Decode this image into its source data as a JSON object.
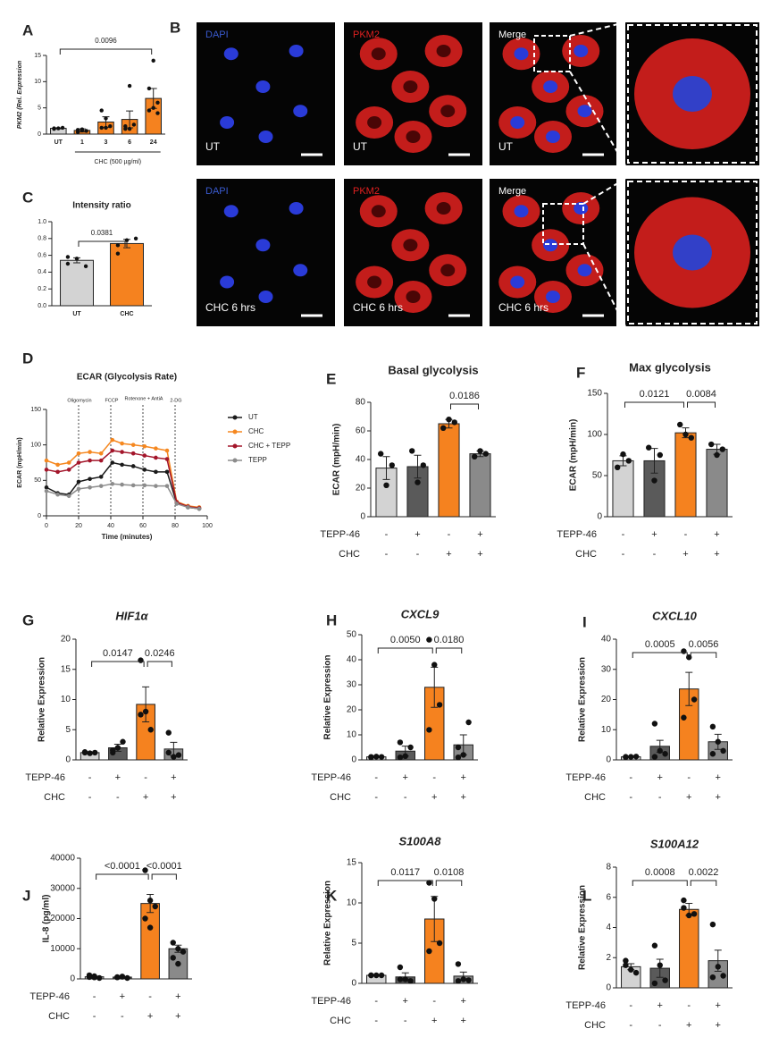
{
  "panel_B": {
    "panel": "B",
    "rows": [
      {
        "labels": [
          "DAPI",
          "PKM2",
          "Merge"
        ],
        "condition": "UT"
      },
      {
        "labels": [
          "DAPI",
          "PKM2",
          "Merge"
        ],
        "condition": "CHC 6 hrs"
      }
    ]
  },
  "chart_data": [
    {
      "type": "bar",
      "panel": "A",
      "ylabel": "PKM2 (Rel. Expression",
      "xlabel": "CHC (500 µg/ml)",
      "categories": [
        "UT",
        "1",
        "3",
        "6",
        "24"
      ],
      "values": [
        1.1,
        0.7,
        2.3,
        2.8,
        6.8
      ],
      "errors": [
        0.1,
        0.3,
        1.0,
        1.6,
        1.9
      ],
      "points": [
        [
          1.0,
          1.1,
          1.2,
          1.1
        ],
        [
          0.4,
          0.9,
          0.6,
          0.8,
          0.7
        ],
        [
          1.2,
          3.0,
          1.5,
          4.5,
          1.2
        ],
        [
          1.5,
          9.2,
          1.8,
          1.0,
          1.0
        ],
        [
          8.7,
          5.0,
          4.0,
          4.5,
          14.0,
          6.0
        ]
      ],
      "colors": [
        "#d3d3d3",
        "#f5821f",
        "#f5821f",
        "#f5821f",
        "#f5821f"
      ],
      "ylim": [
        0,
        15
      ],
      "yticks": [
        0,
        5,
        10,
        15
      ],
      "comparisons": [
        {
          "pair": [
            0,
            4
          ],
          "label": "0.0096"
        }
      ]
    },
    {
      "type": "bar",
      "panel": "C",
      "title": "Intensity ratio",
      "categories": [
        "UT",
        "CHC"
      ],
      "values": [
        0.54,
        0.74
      ],
      "errors": [
        0.03,
        0.05
      ],
      "points": [
        [
          0.5,
          0.56,
          0.47,
          0.58
        ],
        [
          0.62,
          0.78,
          0.8,
          0.72
        ]
      ],
      "colors": [
        "#d3d3d3",
        "#f5821f"
      ],
      "ylim": [
        0,
        1.0
      ],
      "yticks": [
        {
          "value": 0,
          "label": "0.0"
        },
        0.2,
        0.4,
        0.6,
        0.8,
        {
          "value": 1,
          "label": "1.0"
        }
      ],
      "comparisons": [
        {
          "pair": [
            0,
            1
          ],
          "label": "0.0381"
        }
      ]
    },
    {
      "type": "line",
      "panel": "D",
      "title": "ECAR (Glycolysis Rate)",
      "xlabel": "Time (minutes)",
      "ylabel": "ECAR (mpH/min)",
      "x": [
        0,
        7,
        14,
        20,
        27,
        34,
        41,
        47,
        54,
        61,
        68,
        75,
        81,
        88,
        95
      ],
      "series": [
        {
          "name": "UT",
          "color": "#1a1a1a",
          "values": [
            40,
            32,
            30,
            48,
            52,
            55,
            75,
            72,
            70,
            65,
            62,
            62,
            18,
            12,
            10
          ]
        },
        {
          "name": "CHC",
          "color": "#f5871f",
          "values": [
            78,
            72,
            75,
            88,
            90,
            88,
            107,
            102,
            100,
            98,
            95,
            92,
            20,
            14,
            12
          ]
        },
        {
          "name": "CHC + TEPP",
          "color": "#a3152a",
          "values": [
            65,
            62,
            65,
            75,
            78,
            78,
            92,
            90,
            88,
            85,
            82,
            80,
            19,
            13,
            11
          ]
        },
        {
          "name": "TEPP",
          "color": "#8c8c8c",
          "values": [
            35,
            30,
            28,
            38,
            40,
            42,
            45,
            44,
            43,
            43,
            42,
            42,
            17,
            12,
            10
          ]
        }
      ],
      "xlim": [
        0,
        100
      ],
      "xticks": [
        0,
        20,
        40,
        60,
        80,
        100
      ],
      "ylim": [
        0,
        150
      ],
      "yticks": [
        0,
        50,
        100,
        150
      ],
      "annotations": [
        {
          "x": 20,
          "label": "Oligomycin"
        },
        {
          "x": 40,
          "label": "FCCP"
        },
        {
          "x": 60,
          "label": "Rotenone + AntiA"
        },
        {
          "x": 80,
          "label": "2-DG"
        }
      ]
    },
    {
      "type": "bar",
      "panel": "E",
      "title": "Basal glycolysis",
      "ylabel": "ECAR (mpH/min)",
      "values": [
        34,
        35,
        65,
        44
      ],
      "errors": [
        8,
        8,
        3,
        2
      ],
      "points": [
        [
          44,
          22,
          36
        ],
        [
          46,
          24,
          36
        ],
        [
          62,
          68,
          66
        ],
        [
          42,
          46,
          44
        ]
      ],
      "colors": [
        "#d3d3d3",
        "#5a5a5a",
        "#f5821f",
        "#8a8a8a"
      ],
      "ylim": [
        0,
        80
      ],
      "yticks": [
        0,
        20,
        40,
        60,
        80
      ],
      "rows": [
        {
          "name": "TEPP-46",
          "signs": [
            "-",
            "+",
            "-",
            "+"
          ]
        },
        {
          "name": "CHC",
          "signs": [
            "-",
            "-",
            "+",
            "+"
          ]
        }
      ],
      "comparisons": [
        {
          "pair": [
            2,
            3
          ],
          "label": "0.0186"
        }
      ]
    },
    {
      "type": "bar",
      "panel": "F",
      "title": "Max glycolysis",
      "ylabel": "ECAR (mpH/min)",
      "values": [
        68,
        68,
        102,
        82
      ],
      "errors": [
        6,
        15,
        6,
        6
      ],
      "points": [
        [
          60,
          76,
          68
        ],
        [
          84,
          44,
          75
        ],
        [
          112,
          100,
          96
        ],
        [
          88,
          75,
          82
        ]
      ],
      "colors": [
        "#d3d3d3",
        "#5a5a5a",
        "#f5821f",
        "#8a8a8a"
      ],
      "ylim": [
        0,
        150
      ],
      "yticks": [
        0,
        50,
        100,
        150
      ],
      "rows": [
        {
          "name": "TEPP-46",
          "signs": [
            "-",
            "+",
            "-",
            "+"
          ]
        },
        {
          "name": "CHC",
          "signs": [
            "-",
            "-",
            "+",
            "+"
          ]
        }
      ],
      "comparisons": [
        {
          "pair": [
            0,
            2
          ],
          "label": "0.0121"
        },
        {
          "pair": [
            2,
            3
          ],
          "label": "0.0084"
        }
      ]
    },
    {
      "type": "bar",
      "panel": "G",
      "title": "HIF1α",
      "ylabel": "Relative Expression",
      "values": [
        1.2,
        2.0,
        9.2,
        1.8
      ],
      "errors": [
        0.1,
        0.6,
        2.9,
        1.1
      ],
      "points": [
        [
          1.2,
          1.1,
          1.2,
          1.3
        ],
        [
          1.2,
          2.0,
          3.0,
          1.6
        ],
        [
          16.5,
          8,
          5,
          7.5
        ],
        [
          4.5,
          0.5,
          0.8,
          1.2
        ]
      ],
      "colors": [
        "#d3d3d3",
        "#5a5a5a",
        "#f5821f",
        "#8a8a8a"
      ],
      "ylim": [
        0,
        20
      ],
      "yticks": [
        0,
        5,
        10,
        15,
        20
      ],
      "rows": [
        {
          "name": "TEPP-46",
          "signs": [
            "-",
            "+",
            "-",
            "+"
          ]
        },
        {
          "name": "CHC",
          "signs": [
            "-",
            "-",
            "+",
            "+"
          ]
        }
      ],
      "comparisons": [
        {
          "pair": [
            0,
            2
          ],
          "label": "0.0147"
        },
        {
          "pair": [
            2,
            3
          ],
          "label": "0.0246"
        }
      ]
    },
    {
      "type": "bar",
      "panel": "H",
      "title": "CXCL9",
      "ylabel": "Relative Expression",
      "values": [
        1.2,
        3.5,
        29,
        6
      ],
      "errors": [
        0.2,
        2,
        8,
        4
      ],
      "points": [
        [
          1,
          1.3,
          1.2,
          1.2
        ],
        [
          1,
          1.5,
          5,
          7
        ],
        [
          48,
          38,
          22,
          12
        ],
        [
          1,
          2,
          15,
          5
        ]
      ],
      "colors": [
        "#d3d3d3",
        "#5a5a5a",
        "#f5821f",
        "#8a8a8a"
      ],
      "ylim": [
        0,
        50
      ],
      "yticks": [
        0,
        10,
        20,
        30,
        40,
        50
      ],
      "rows": [
        {
          "name": "TEPP-46",
          "signs": [
            "-",
            "+",
            "-",
            "+"
          ]
        },
        {
          "name": "CHC",
          "signs": [
            "-",
            "-",
            "+",
            "+"
          ]
        }
      ],
      "comparisons": [
        {
          "pair": [
            0,
            2
          ],
          "label": "0.0050"
        },
        {
          "pair": [
            2,
            3
          ],
          "label": "0.0180"
        }
      ]
    },
    {
      "type": "bar",
      "panel": "I",
      "title": "CXCL10",
      "ylabel": "Relative Expression",
      "values": [
        1,
        4.5,
        23.5,
        6
      ],
      "errors": [
        0.1,
        2,
        5.5,
        2.5
      ],
      "points": [
        [
          1,
          1,
          1.1,
          0.9
        ],
        [
          12,
          3,
          2,
          1
        ],
        [
          36,
          34,
          20,
          14
        ],
        [
          11,
          6,
          3,
          2
        ]
      ],
      "colors": [
        "#d3d3d3",
        "#5a5a5a",
        "#f5821f",
        "#8a8a8a"
      ],
      "ylim": [
        0,
        40
      ],
      "yticks": [
        0,
        10,
        20,
        30,
        40
      ],
      "rows": [
        {
          "name": "TEPP-46",
          "signs": [
            "-",
            "+",
            "-",
            "+"
          ]
        },
        {
          "name": "CHC",
          "signs": [
            "-",
            "-",
            "+",
            "+"
          ]
        }
      ],
      "comparisons": [
        {
          "pair": [
            0,
            2
          ],
          "label": "0.0005"
        },
        {
          "pair": [
            2,
            3
          ],
          "label": "0.0056"
        }
      ]
    },
    {
      "type": "bar",
      "panel": "J",
      "ylabel": "IL-8 (pg/ml)",
      "values": [
        700,
        600,
        25000,
        10000
      ],
      "errors": [
        200,
        150,
        3000,
        1200
      ],
      "points": [
        [
          1200,
          500,
          300,
          600,
          900
        ],
        [
          500,
          800,
          300,
          600,
          700
        ],
        [
          36000,
          26000,
          24000,
          20000,
          17000
        ],
        [
          12000,
          10000,
          9000,
          7000,
          5000
        ]
      ],
      "colors": [
        "#d3d3d3",
        "#5a5a5a",
        "#f5821f",
        "#8a8a8a"
      ],
      "ylim": [
        0,
        40000
      ],
      "yticks": [
        0,
        10000,
        20000,
        30000,
        40000
      ],
      "rows": [
        {
          "name": "TEPP-46",
          "signs": [
            "-",
            "+",
            "-",
            "+"
          ]
        },
        {
          "name": "CHC",
          "signs": [
            "-",
            "-",
            "+",
            "+"
          ]
        }
      ],
      "comparisons": [
        {
          "pair": [
            0,
            2
          ],
          "label": "<0.0001"
        },
        {
          "pair": [
            2,
            3
          ],
          "label": "<0.0001"
        }
      ]
    },
    {
      "type": "bar",
      "panel": "K",
      "title": "S100A8",
      "ylabel": "Relative Expression",
      "values": [
        1,
        0.8,
        8,
        0.9
      ],
      "errors": [
        0.1,
        0.5,
        2.8,
        0.5
      ],
      "points": [
        [
          1,
          1,
          1,
          1
        ],
        [
          2,
          0.5,
          0.3,
          0.5
        ],
        [
          12.5,
          10.5,
          5,
          4
        ],
        [
          2.4,
          0.5,
          0.4,
          0.3
        ]
      ],
      "colors": [
        "#d3d3d3",
        "#5a5a5a",
        "#f5821f",
        "#8a8a8a"
      ],
      "ylim": [
        0,
        15
      ],
      "yticks": [
        0,
        5,
        10,
        15
      ],
      "rows": [
        {
          "name": "TEPP-46",
          "signs": [
            "-",
            "+",
            "-",
            "+"
          ]
        },
        {
          "name": "CHC",
          "signs": [
            "-",
            "-",
            "+",
            "+"
          ]
        }
      ],
      "comparisons": [
        {
          "pair": [
            0,
            2
          ],
          "label": "0.0117"
        },
        {
          "pair": [
            2,
            3
          ],
          "label": "0.0108"
        }
      ]
    },
    {
      "type": "bar",
      "panel": "L",
      "title": "S100A12",
      "ylabel": "Relative Expression",
      "values": [
        1.4,
        1.3,
        5.2,
        1.8
      ],
      "errors": [
        0.2,
        0.6,
        0.4,
        0.7
      ],
      "points": [
        [
          1.8,
          1.2,
          1.0,
          1.5
        ],
        [
          2.8,
          1.5,
          0.5,
          0.3
        ],
        [
          5.8,
          4.8,
          4.9,
          5.3
        ],
        [
          4.2,
          1.4,
          0.8,
          0.7
        ]
      ],
      "colors": [
        "#d3d3d3",
        "#5a5a5a",
        "#f5821f",
        "#8a8a8a"
      ],
      "ylim": [
        0,
        8
      ],
      "yticks": [
        0,
        2,
        4,
        6,
        8
      ],
      "rows": [
        {
          "name": "TEPP-46",
          "signs": [
            "-",
            "+",
            "-",
            "+"
          ]
        },
        {
          "name": "CHC",
          "signs": [
            "-",
            "-",
            "+",
            "+"
          ]
        }
      ],
      "comparisons": [
        {
          "pair": [
            0,
            2
          ],
          "label": "0.0008"
        },
        {
          "pair": [
            2,
            3
          ],
          "label": "0.0022"
        }
      ]
    }
  ]
}
